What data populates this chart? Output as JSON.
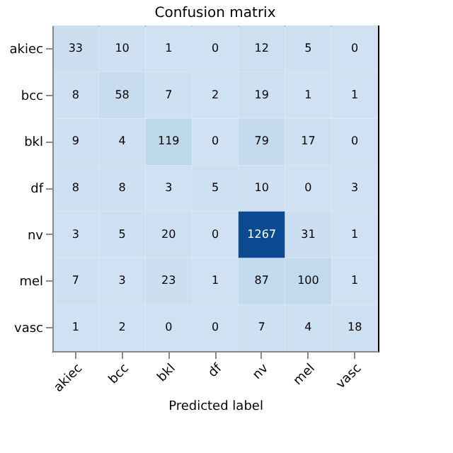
{
  "chart_data": {
    "type": "heatmap",
    "title": "Confusion matrix",
    "xlabel": "Predicted label",
    "categories": [
      "akiec",
      "bcc",
      "bkl",
      "df",
      "nv",
      "mel",
      "vasc"
    ],
    "y_categories": [
      "akiec",
      "bcc",
      "bkl",
      "df",
      "nv",
      "mel",
      "vasc"
    ],
    "cells": [
      [
        33,
        10,
        1,
        0,
        12,
        5,
        0
      ],
      [
        8,
        58,
        7,
        2,
        19,
        1,
        1
      ],
      [
        9,
        4,
        119,
        0,
        79,
        17,
        0
      ],
      [
        8,
        8,
        3,
        5,
        10,
        0,
        3
      ],
      [
        3,
        5,
        20,
        0,
        1267,
        31,
        1
      ],
      [
        7,
        3,
        23,
        1,
        87,
        100,
        1
      ],
      [
        1,
        2,
        0,
        0,
        7,
        4,
        18
      ]
    ],
    "data_labels": true
  }
}
